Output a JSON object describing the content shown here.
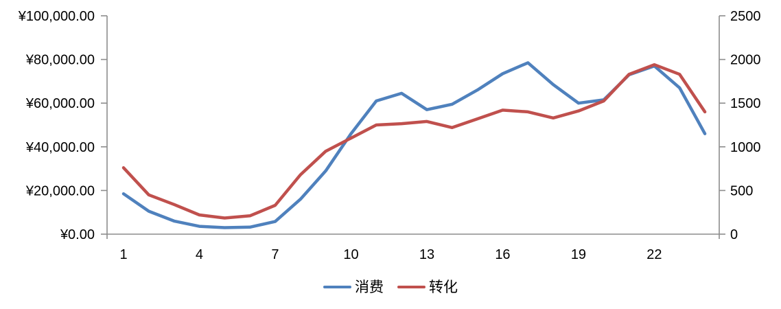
{
  "chart_data": {
    "type": "line",
    "x": [
      1,
      2,
      3,
      4,
      5,
      6,
      7,
      8,
      9,
      10,
      11,
      12,
      13,
      14,
      15,
      16,
      17,
      18,
      19,
      20,
      21,
      22,
      23,
      24
    ],
    "x_tick_positions": [
      1,
      4,
      7,
      10,
      13,
      16,
      19,
      22
    ],
    "x_tick_labels": [
      "1",
      "4",
      "7",
      "10",
      "13",
      "16",
      "19",
      "22"
    ],
    "series": [
      {
        "name": "消费",
        "axis": "left",
        "color": "#4F81BD",
        "values": [
          18500,
          10500,
          6000,
          3600,
          3000,
          3200,
          5800,
          16000,
          29000,
          46000,
          61000,
          64500,
          57000,
          59500,
          66000,
          73500,
          78500,
          68500,
          60000,
          61500,
          73000,
          77000,
          67000,
          46000
        ]
      },
      {
        "name": "转化",
        "axis": "right",
        "color": "#C0504D",
        "values": [
          760,
          450,
          340,
          220,
          185,
          210,
          330,
          680,
          950,
          1100,
          1250,
          1265,
          1290,
          1220,
          1320,
          1420,
          1400,
          1330,
          1410,
          1525,
          1830,
          1940,
          1830,
          1400
        ]
      }
    ],
    "left_axis": {
      "min": 0,
      "max": 100000,
      "tick_step": 20000,
      "tick_labels": [
        "¥0.00",
        "¥20,000.00",
        "¥40,000.00",
        "¥60,000.00",
        "¥80,000.00",
        "¥100,000.00"
      ]
    },
    "right_axis": {
      "min": 0,
      "max": 2500,
      "tick_step": 500,
      "tick_labels": [
        "0",
        "500",
        "1000",
        "1500",
        "2000",
        "2500"
      ]
    },
    "grid": false,
    "legend_position": "bottom",
    "title": ""
  },
  "legend": {
    "series1_label": "消费",
    "series2_label": "转化"
  },
  "colors": {
    "series1": "#4F81BD",
    "series2": "#C0504D",
    "axis": "#8C8C8C",
    "text": "#000000",
    "background": "#FFFFFF"
  }
}
